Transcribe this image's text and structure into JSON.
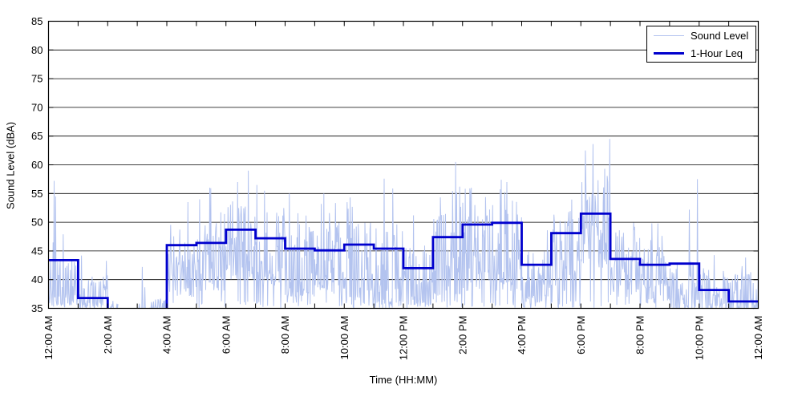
{
  "figure": {
    "background": "#ffffff",
    "axis_color": "#000000"
  },
  "chart_data": {
    "type": "line",
    "title": "",
    "xlabel": "Time (HH:MM)",
    "ylabel": "Sound Level (dBA)",
    "ylim": [
      35,
      85
    ],
    "yticks": [
      35,
      40,
      45,
      50,
      55,
      60,
      65,
      70,
      75,
      80,
      85
    ],
    "xlim_hours": [
      0,
      24
    ],
    "xtick_hours": [
      0,
      2,
      4,
      6,
      8,
      10,
      12,
      14,
      16,
      18,
      20,
      22,
      24
    ],
    "xtick_labels": [
      "12:00 AM",
      "2:00 AM",
      "4:00 AM",
      "6:00 AM",
      "8:00 AM",
      "10:00 AM",
      "12:00 PM",
      "2:00 PM",
      "4:00 PM",
      "6:00 PM",
      "8:00 PM",
      "10:00 PM",
      "12:00 AM"
    ],
    "minor_tick_every_hours": 1,
    "grid": "horizontal-only",
    "legend": {
      "position": "top-right",
      "entries": [
        {
          "label": "Sound Level",
          "color": "#b3c3ef",
          "line_width": 1
        },
        {
          "label": "1-Hour Leq",
          "color": "#0000cd",
          "line_width": 3
        }
      ]
    },
    "series": [
      {
        "name": "Sound Level",
        "style": "noisy-raw",
        "color": "#b3c3ef",
        "gaps_hours": [
          [
            2.35,
            3.05
          ]
        ],
        "envelope_by_hour": [
          [
            35.5,
            44.0,
            48.0,
            1
          ],
          [
            35.0,
            41.0,
            44.0,
            1
          ],
          [
            34.0,
            36.5,
            38.5,
            0.5
          ],
          [
            34.0,
            37.0,
            42.0,
            0.6
          ],
          [
            37.0,
            47.0,
            53.5,
            1
          ],
          [
            38.0,
            50.0,
            56.0,
            1
          ],
          [
            40.0,
            53.0,
            59.0,
            1
          ],
          [
            39.0,
            52.0,
            56.5,
            1
          ],
          [
            37.0,
            50.0,
            55.0,
            1
          ],
          [
            37.0,
            50.0,
            55.5,
            1
          ],
          [
            35.5,
            52.0,
            54.5,
            1
          ],
          [
            35.0,
            50.0,
            57.5,
            1
          ],
          [
            35.0,
            46.0,
            51.5,
            1
          ],
          [
            36.0,
            52.0,
            60.5,
            1
          ],
          [
            38.0,
            55.0,
            57.5,
            1
          ],
          [
            38.0,
            56.0,
            57.5,
            1
          ],
          [
            36.0,
            46.0,
            50.0,
            1
          ],
          [
            38.0,
            52.0,
            55.0,
            1
          ],
          [
            42.0,
            58.0,
            64.5,
            1
          ],
          [
            37.0,
            48.0,
            50.5,
            1
          ],
          [
            36.0,
            46.0,
            50.0,
            1
          ],
          [
            35.0,
            43.5,
            57.5,
            0.9
          ],
          [
            34.5,
            42.0,
            47.0,
            0.9
          ],
          [
            34.5,
            41.0,
            45.5,
            0.85
          ]
        ],
        "notable_spikes": [
          [
            0.18,
            57.2
          ],
          [
            0.24,
            54.5
          ],
          [
            1.12,
            44.2
          ],
          [
            3.17,
            42.2
          ],
          [
            4.72,
            53.5
          ],
          [
            5.1,
            54.0
          ],
          [
            5.45,
            56.0
          ],
          [
            6.4,
            57.0
          ],
          [
            6.75,
            59.0
          ],
          [
            7.05,
            56.5
          ],
          [
            7.3,
            55.5
          ],
          [
            8.15,
            55.0
          ],
          [
            9.3,
            55.0
          ],
          [
            10.2,
            54.3
          ],
          [
            11.35,
            57.6
          ],
          [
            12.35,
            51.2
          ],
          [
            13.76,
            60.5
          ],
          [
            13.9,
            56.2
          ],
          [
            14.3,
            56.0
          ],
          [
            15.3,
            57.4
          ],
          [
            15.5,
            57.0
          ],
          [
            18.8,
            59.3
          ],
          [
            18.97,
            64.5
          ],
          [
            21.95,
            57.5
          ]
        ]
      },
      {
        "name": "1-Hour Leq",
        "style": "step-hourly",
        "color": "#0000cd",
        "hourly_leq_dba": [
          43.4,
          36.8,
          null,
          null,
          46.0,
          46.4,
          48.7,
          47.2,
          45.4,
          45.1,
          46.1,
          45.4,
          42.0,
          47.4,
          49.6,
          49.9,
          42.6,
          48.1,
          51.5,
          43.6,
          42.6,
          42.8,
          38.2,
          36.2
        ]
      }
    ]
  }
}
